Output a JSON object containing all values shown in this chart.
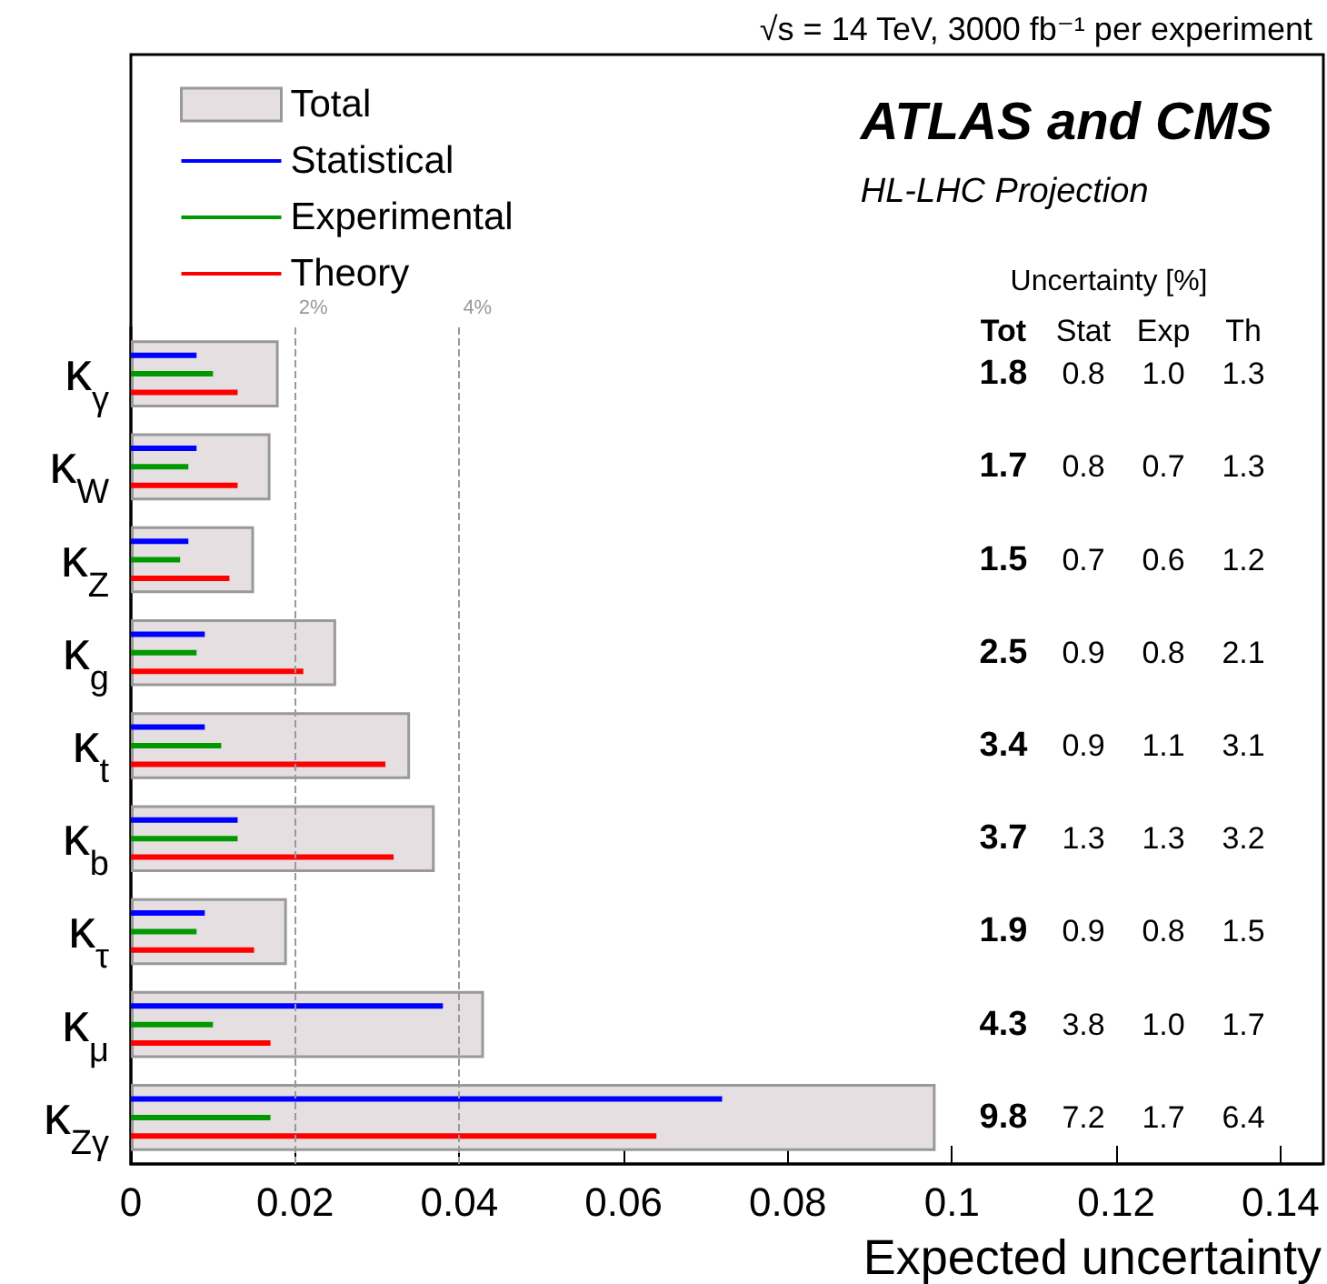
{
  "chart_data": {
    "type": "bar",
    "orientation": "horizontal",
    "title": "ATLAS and CMS",
    "subtitle": "HL-LHC Projection",
    "xlabel": "Expected uncertainty",
    "annotations": [
      "√s = 14 TeV, 3000 fb⁻¹ per experiment",
      "Uncertainty [%]",
      "Tot",
      "Stat",
      "Exp",
      "Th",
      "1.8",
      "0.8",
      "1.0",
      "1.3",
      "1.7",
      "0.8",
      "0.7",
      "1.3",
      "1.5",
      "0.7",
      "0.6",
      "1.2",
      "2.5",
      "0.9",
      "0.8",
      "2.1",
      "3.4",
      "0.9",
      "1.1",
      "3.1",
      "3.7",
      "1.3",
      "1.3",
      "3.2",
      "1.9",
      "0.9",
      "0.8",
      "1.5",
      "4.3",
      "3.8",
      "1.0",
      "1.7",
      "9.8",
      "7.2",
      "1.7",
      "6.4"
    ],
    "categories": [
      "κ$_{γ}$",
      "κ$_{W}$",
      "κ$_{Z}$",
      "κ$_{g}$",
      "κ$_{t}$",
      "κ$_{b}$",
      "κ$_{τ}$",
      "κ$_{μ}$",
      "κ$_{Zγ}$"
    ],
    "series": [
      {
        "name": "Total",
        "color": "#e6dfe2",
        "values": [
          0.018,
          0.017,
          0.015,
          0.025,
          0.034,
          0.037,
          0.019,
          0.043,
          0.098
        ]
      },
      {
        "name": "Statistical",
        "color": "#0000ff",
        "values": [
          0.008,
          0.008,
          0.007,
          0.009,
          0.009,
          0.013,
          0.009,
          0.038,
          0.072
        ]
      },
      {
        "name": "Experimental",
        "color": "#009900",
        "values": [
          0.01,
          0.007,
          0.006,
          0.008,
          0.011,
          0.013,
          0.008,
          0.01,
          0.017
        ]
      },
      {
        "name": "Theory",
        "color": "#ff0000",
        "values": [
          0.013,
          0.013,
          0.012,
          0.021,
          0.031,
          0.032,
          0.015,
          0.017,
          0.064
        ]
      }
    ],
    "xlim": [
      0,
      0.145
    ],
    "xticks": [
      0,
      0.02,
      0.04,
      0.06,
      0.08,
      0.1,
      0.12,
      0.14
    ],
    "ref_lines": [
      {
        "axis": "x",
        "value": 0.02,
        "label": "2%",
        "color": "#999999",
        "line_style": "dashed"
      },
      {
        "axis": "x",
        "value": 0.04,
        "label": "4%",
        "color": "#999999",
        "line_style": "dashed"
      }
    ],
    "legend": "top left",
    "grid": false
  }
}
